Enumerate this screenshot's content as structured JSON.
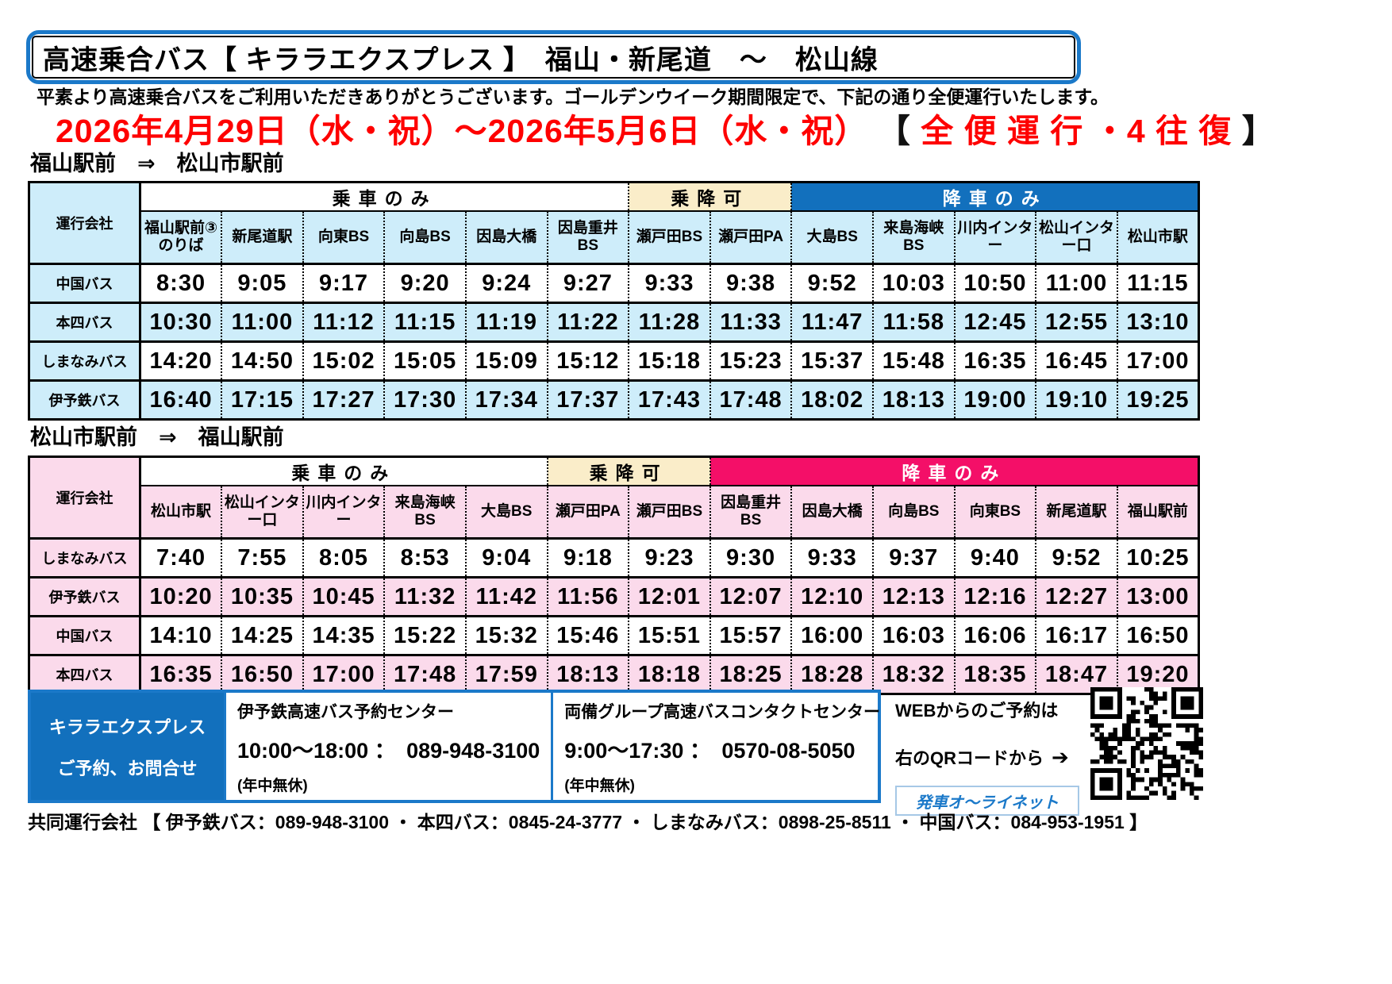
{
  "page": {
    "title": "高速乗合バス【 キララエクスプレス 】　福山・新尾道　～　松山線",
    "greeting": "平素より高速乗合バスをご利用いただきありがとうございます。ゴールデンウイーク期間限定で、下記の通り全便運行いたします。",
    "period": {
      "dates": "2026年4月29日（水・祝）～2026年5月6日（水・祝）",
      "bracket_open": "【",
      "note": " 全 便 運 行 ・4 往 復 ",
      "bracket_close": "】"
    }
  },
  "colors": {
    "border_blue": "#1B79C9",
    "panel_blue": "#1270BD",
    "dropoff_only_pink": "#F40F68",
    "board_alight_cream": "#FAEDC9",
    "light_blue": "#CEEDFA",
    "light_pink": "#FBDAEB",
    "highlight_red": "#FE0000"
  },
  "tables": [
    {
      "direction": "福山駅前　⇒　松山市駅前",
      "company_header": "運行会社",
      "header_bg": "#CEEDFA",
      "stripe_bg": "#CEEDFA",
      "groups": [
        {
          "label": "乗車のみ",
          "span": 6,
          "bg": "#FFFFFF",
          "color": "#000000"
        },
        {
          "label": "乗降可",
          "span": 2,
          "bg": "#FAEDC9",
          "color": "#000000"
        },
        {
          "label": "降車のみ",
          "span": 5,
          "bg": "#1270BD",
          "color": "#FFFFFF"
        }
      ],
      "stations": [
        "福山駅前③のりば",
        "新尾道駅",
        "向東BS",
        "向島BS",
        "因島大橋",
        "因島重井BS",
        "瀬戸田BS",
        "瀬戸田PA",
        "大島BS",
        "来島海峡BS",
        "川内インター",
        "松山インター口",
        "松山市駅"
      ],
      "rows": [
        {
          "company": "中国バス",
          "times": [
            "8:30",
            "9:05",
            "9:17",
            "9:20",
            "9:24",
            "9:27",
            "9:33",
            "9:38",
            "9:52",
            "10:03",
            "10:50",
            "11:00",
            "11:15"
          ]
        },
        {
          "company": "本四バス",
          "times": [
            "10:30",
            "11:00",
            "11:12",
            "11:15",
            "11:19",
            "11:22",
            "11:28",
            "11:33",
            "11:47",
            "11:58",
            "12:45",
            "12:55",
            "13:10"
          ]
        },
        {
          "company": "しまなみバス",
          "times": [
            "14:20",
            "14:50",
            "15:02",
            "15:05",
            "15:09",
            "15:12",
            "15:18",
            "15:23",
            "15:37",
            "15:48",
            "16:35",
            "16:45",
            "17:00"
          ]
        },
        {
          "company": "伊予鉄バス",
          "times": [
            "16:40",
            "17:15",
            "17:27",
            "17:30",
            "17:34",
            "17:37",
            "17:43",
            "17:48",
            "18:02",
            "18:13",
            "19:00",
            "19:10",
            "19:25"
          ]
        }
      ]
    },
    {
      "direction": "松山市駅前　⇒　福山駅前",
      "company_header": "運行会社",
      "header_bg": "#FBDAEB",
      "stripe_bg": "#FBDAEB",
      "groups": [
        {
          "label": "乗車のみ",
          "span": 5,
          "bg": "#FFFFFF",
          "color": "#000000"
        },
        {
          "label": "乗降可",
          "span": 2,
          "bg": "#FAEDC9",
          "color": "#000000"
        },
        {
          "label": "降車のみ",
          "span": 6,
          "bg": "#F40F68",
          "color": "#FFFFFF"
        }
      ],
      "stations": [
        "松山市駅",
        "松山インター口",
        "川内インター",
        "来島海峡BS",
        "大島BS",
        "瀬戸田PA",
        "瀬戸田BS",
        "因島重井BS",
        "因島大橋",
        "向島BS",
        "向東BS",
        "新尾道駅",
        "福山駅前"
      ],
      "rows": [
        {
          "company": "しまなみバス",
          "times": [
            "7:40",
            "7:55",
            "8:05",
            "8:53",
            "9:04",
            "9:18",
            "9:23",
            "9:30",
            "9:33",
            "9:37",
            "9:40",
            "9:52",
            "10:25"
          ]
        },
        {
          "company": "伊予鉄バス",
          "times": [
            "10:20",
            "10:35",
            "10:45",
            "11:32",
            "11:42",
            "11:56",
            "12:01",
            "12:07",
            "12:10",
            "12:13",
            "12:16",
            "12:27",
            "13:00"
          ]
        },
        {
          "company": "中国バス",
          "times": [
            "14:10",
            "14:25",
            "14:35",
            "15:22",
            "15:32",
            "15:46",
            "15:51",
            "15:57",
            "16:00",
            "16:03",
            "16:06",
            "16:17",
            "16:50"
          ]
        },
        {
          "company": "本四バス",
          "times": [
            "16:35",
            "16:50",
            "17:00",
            "17:48",
            "17:59",
            "18:13",
            "18:18",
            "18:25",
            "18:28",
            "18:32",
            "18:35",
            "18:47",
            "19:20"
          ]
        }
      ]
    }
  ],
  "contact": {
    "brand_line1": "キララエクスプレス",
    "brand_line2": "ご予約、お問合せ",
    "centers": [
      {
        "name": "伊予鉄高速バス予約センター",
        "hours_phone": "10:00～18:00 ：　089-948-3100",
        "note": "(年中無休)"
      },
      {
        "name": "両備グループ高速バスコンタクトセンター",
        "hours_phone": "9:00～17:30 ：　0570-08-5050",
        "note": "(年中無休)"
      }
    ],
    "web": {
      "line1": "WEBからのご予約は",
      "line2": "右のQRコードから",
      "arrow": "➔",
      "service": "発車オ～ライネット"
    }
  },
  "footer": "共同運行会社 【 伊予鉄バス：089-948-3100 ・ 本四バス：0845-24-3777 ・ しまなみバス：0898-25-8511 ・ 中国バス：084-953-1951 】"
}
